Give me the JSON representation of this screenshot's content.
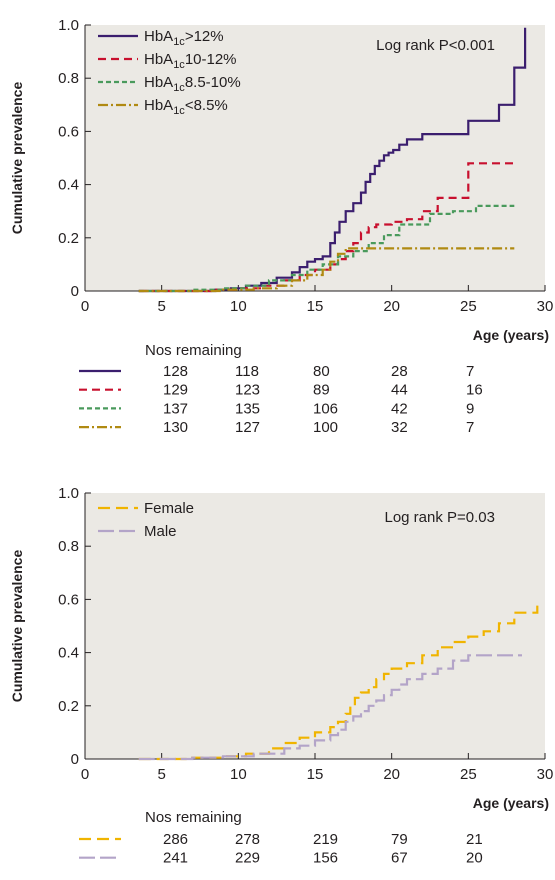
{
  "chart_data": [
    {
      "type": "line",
      "step": true,
      "panel": "top",
      "ylabel": "Cumulative prevalence",
      "xlabel": "Age (years)",
      "xlim": [
        0,
        30
      ],
      "ylim": [
        0,
        1.0
      ],
      "x_ticks": [
        "0",
        "5",
        "10",
        "15",
        "20",
        "25",
        "30"
      ],
      "y_ticks": [
        "0",
        "0.2",
        "0.4",
        "0.6",
        "0.8",
        "1.0"
      ],
      "grid": false,
      "legend_position": "top-left",
      "annotation": "Log rank P<0.001",
      "series": [
        {
          "legend_prefix": "HbA",
          "legend_sub": "1c",
          "legend_suffix": ">12%",
          "color": "#3b1e6e",
          "dash": "solid",
          "x": [
            3.5,
            8.5,
            9.5,
            10.5,
            11.5,
            12.5,
            13.5,
            14.0,
            14.5,
            15.0,
            15.5,
            16.0,
            16.3,
            16.6,
            17.0,
            17.5,
            18.0,
            18.3,
            18.6,
            18.9,
            19.2,
            19.5,
            19.8,
            20.1,
            20.5,
            21.0,
            21.5,
            22.0,
            22.5,
            25.0,
            27.0,
            28.0,
            28.7
          ],
          "y": [
            0,
            0.005,
            0.01,
            0.02,
            0.03,
            0.05,
            0.07,
            0.09,
            0.11,
            0.12,
            0.13,
            0.18,
            0.22,
            0.26,
            0.3,
            0.33,
            0.37,
            0.41,
            0.44,
            0.47,
            0.49,
            0.51,
            0.52,
            0.53,
            0.55,
            0.57,
            0.57,
            0.59,
            0.59,
            0.64,
            0.7,
            0.84,
            0.99
          ]
        },
        {
          "legend_prefix": "HbA",
          "legend_sub": "1c",
          "legend_suffix": "10-12%",
          "color": "#c8102e",
          "dash": "8,5",
          "x": [
            3.5,
            8.5,
            10.0,
            11.5,
            13.0,
            14.0,
            15.0,
            16.0,
            16.5,
            17.0,
            17.5,
            18.0,
            18.5,
            19.0,
            20.0,
            21.0,
            22.0,
            23.0,
            25.0,
            28.0
          ],
          "y": [
            0,
            0.005,
            0.01,
            0.02,
            0.04,
            0.06,
            0.08,
            0.1,
            0.12,
            0.15,
            0.18,
            0.22,
            0.24,
            0.25,
            0.26,
            0.27,
            0.3,
            0.35,
            0.48,
            0.48
          ]
        },
        {
          "legend_prefix": "HbA",
          "legend_sub": "1c",
          "legend_suffix": "8.5-10%",
          "color": "#4a9a5c",
          "dash": "5,3",
          "x": [
            3.5,
            7.0,
            9.0,
            10.5,
            12.0,
            13.5,
            14.5,
            15.5,
            16.5,
            17.5,
            18.5,
            19.5,
            20.5,
            22.5,
            24.0,
            25.5,
            28.0
          ],
          "y": [
            0,
            0.005,
            0.01,
            0.02,
            0.04,
            0.06,
            0.08,
            0.1,
            0.13,
            0.15,
            0.18,
            0.21,
            0.25,
            0.29,
            0.3,
            0.32,
            0.32
          ]
        },
        {
          "legend_prefix": "HbA",
          "legend_sub": "1c",
          "legend_suffix": "<8.5%",
          "color": "#b08a12",
          "dash": "10,3,2,3",
          "x": [
            3.5,
            9.0,
            11.0,
            12.5,
            13.5,
            14.5,
            15.5,
            16.0,
            16.5,
            17.0,
            28.0
          ],
          "y": [
            0,
            0.005,
            0.01,
            0.02,
            0.04,
            0.06,
            0.08,
            0.11,
            0.14,
            0.16,
            0.16
          ]
        }
      ],
      "numbers_remaining": {
        "title": "Nos remaining",
        "rows": [
          {
            "color": "#3b1e6e",
            "dash": "solid",
            "values": [
              "128",
              "118",
              "80",
              "28",
              "7"
            ]
          },
          {
            "color": "#c8102e",
            "dash": "8,5",
            "values": [
              "129",
              "123",
              "89",
              "44",
              "16"
            ]
          },
          {
            "color": "#4a9a5c",
            "dash": "5,3",
            "values": [
              "137",
              "135",
              "106",
              "42",
              "9"
            ]
          },
          {
            "color": "#b08a12",
            "dash": "10,3,2,3",
            "values": [
              "130",
              "127",
              "100",
              "32",
              "7"
            ]
          }
        ]
      }
    },
    {
      "type": "line",
      "step": true,
      "panel": "bottom",
      "ylabel": "Cumulative prevalence",
      "xlabel": "Age (years)",
      "xlim": [
        0,
        30
      ],
      "ylim": [
        0,
        1.0
      ],
      "x_ticks": [
        "0",
        "5",
        "10",
        "15",
        "20",
        "25",
        "30"
      ],
      "y_ticks": [
        "0",
        "0.2",
        "0.4",
        "0.6",
        "0.8",
        "1.0"
      ],
      "grid": false,
      "legend_position": "top-left",
      "annotation": "Log rank P=0.03",
      "series": [
        {
          "name": "Female",
          "color": "#f0b400",
          "dash": "12,6",
          "x": [
            3.5,
            7.0,
            9.0,
            10.5,
            12.0,
            13.0,
            14.0,
            15.0,
            16.0,
            16.5,
            17.0,
            17.3,
            17.6,
            18.0,
            18.5,
            19.0,
            19.5,
            20.0,
            21.0,
            22.0,
            23.0,
            24.0,
            25.0,
            26.0,
            27.0,
            28.0,
            29.5
          ],
          "y": [
            0,
            0.005,
            0.01,
            0.02,
            0.04,
            0.06,
            0.08,
            0.1,
            0.12,
            0.14,
            0.17,
            0.2,
            0.23,
            0.25,
            0.27,
            0.3,
            0.32,
            0.34,
            0.36,
            0.39,
            0.42,
            0.44,
            0.46,
            0.48,
            0.51,
            0.55,
            0.59
          ]
        },
        {
          "name": "Male",
          "color": "#b3a4c8",
          "dash": "16,5",
          "x": [
            3.5,
            7.0,
            9.0,
            11.0,
            13.0,
            14.0,
            15.0,
            16.0,
            16.5,
            17.0,
            17.5,
            18.0,
            18.5,
            19.0,
            19.5,
            20.0,
            20.5,
            21.0,
            22.0,
            23.0,
            24.0,
            25.0,
            25.5,
            28.5
          ],
          "y": [
            0,
            0.005,
            0.01,
            0.02,
            0.04,
            0.05,
            0.07,
            0.09,
            0.11,
            0.14,
            0.16,
            0.18,
            0.2,
            0.22,
            0.24,
            0.26,
            0.28,
            0.3,
            0.32,
            0.34,
            0.37,
            0.39,
            0.39,
            0.39
          ]
        }
      ],
      "numbers_remaining": {
        "title": "Nos remaining",
        "rows": [
          {
            "color": "#f0b400",
            "dash": "12,6",
            "values": [
              "286",
              "278",
              "219",
              "79",
              "21"
            ]
          },
          {
            "color": "#b3a4c8",
            "dash": "16,5",
            "values": [
              "241",
              "229",
              "156",
              "67",
              "20"
            ]
          }
        ]
      }
    }
  ],
  "style": {
    "panel_background": "#ebe9e4",
    "axis_color": "#231f20"
  }
}
